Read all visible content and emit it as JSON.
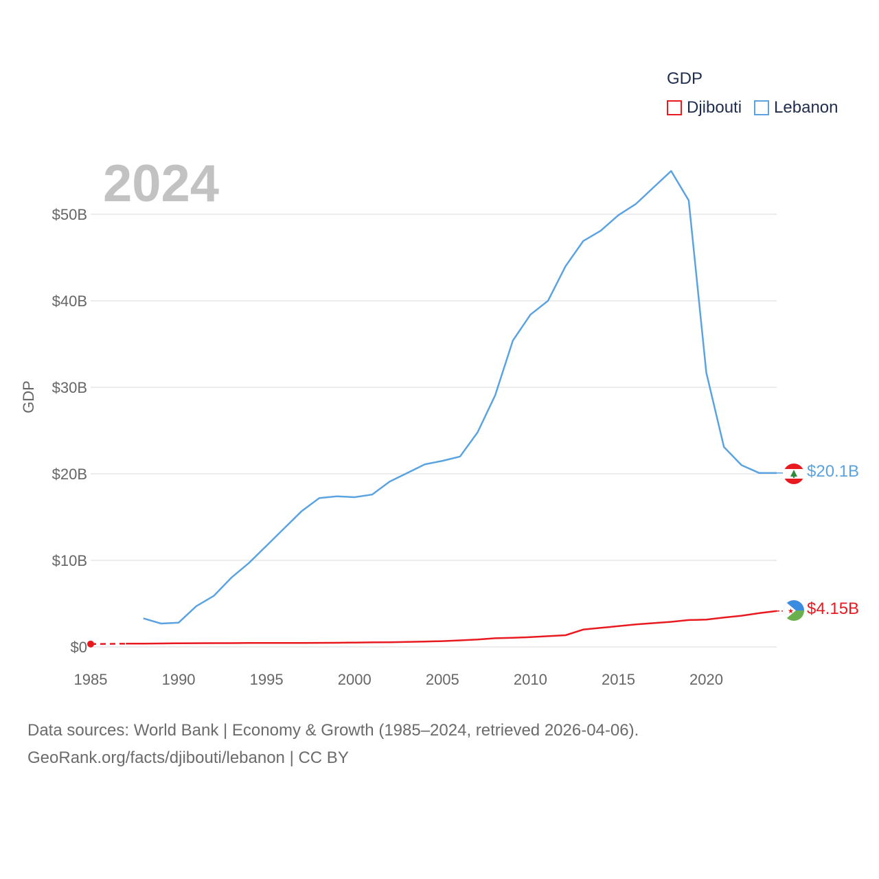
{
  "year_label": "2024",
  "legend": {
    "title": "GDP",
    "items": [
      {
        "name": "Djibouti",
        "color": "#e8191f"
      },
      {
        "name": "Lebanon",
        "color": "#5ba3e0"
      }
    ]
  },
  "footer": {
    "line1": "Data sources: World Bank | Economy & Growth (1985–2024, retrieved 2026-04-06).",
    "line2": "GeoRank.org/facts/djibouti/lebanon | CC BY"
  },
  "end_labels": {
    "lebanon": "$20.1B",
    "djibouti": "$4.15B"
  },
  "chart_data": {
    "type": "line",
    "title": "",
    "xlabel": "",
    "ylabel": "GDP",
    "xlim": [
      1985,
      2024
    ],
    "ylim": [
      0,
      55
    ],
    "x_ticks": [
      1985,
      1990,
      1995,
      2000,
      2005,
      2010,
      2015,
      2020
    ],
    "x_tick_labels": [
      "1985",
      "1990",
      "1995",
      "2000",
      "2005",
      "2010",
      "2015",
      "2020"
    ],
    "y_ticks": [
      0,
      10,
      20,
      30,
      40,
      50
    ],
    "y_tick_labels": [
      "$0",
      "$10B",
      "$20B",
      "$30B",
      "$40B",
      "$50B"
    ],
    "units": "billions USD",
    "series": [
      {
        "name": "Lebanon",
        "color": "#5ba3e0",
        "x": [
          1988,
          1989,
          1990,
          1991,
          1992,
          1993,
          1994,
          1995,
          1996,
          1997,
          1998,
          1999,
          2000,
          2001,
          2002,
          2003,
          2004,
          2005,
          2006,
          2007,
          2008,
          2009,
          2010,
          2011,
          2012,
          2013,
          2014,
          2015,
          2016,
          2017,
          2018,
          2019,
          2020,
          2021,
          2022,
          2023,
          2024
        ],
        "values": [
          3.3,
          2.7,
          2.8,
          4.7,
          5.9,
          8.0,
          9.7,
          11.7,
          13.7,
          15.7,
          17.2,
          17.4,
          17.3,
          17.6,
          19.1,
          20.1,
          21.1,
          21.5,
          22.0,
          24.8,
          29.1,
          35.4,
          38.4,
          40.0,
          44.0,
          46.9,
          48.1,
          49.9,
          51.2,
          53.1,
          55.0,
          51.6,
          31.7,
          23.1,
          21.0,
          20.1,
          20.1
        ],
        "last_value_label": "$20.1B"
      },
      {
        "name": "Djibouti",
        "color": "#e8191f",
        "x": [
          1985,
          1987,
          1988,
          1989,
          1990,
          1991,
          1992,
          1993,
          1994,
          1995,
          1996,
          1997,
          1998,
          1999,
          2000,
          2001,
          2002,
          2003,
          2004,
          2005,
          2006,
          2007,
          2008,
          2009,
          2010,
          2011,
          2012,
          2013,
          2014,
          2015,
          2016,
          2017,
          2018,
          2019,
          2020,
          2021,
          2022,
          2023,
          2024
        ],
        "values": [
          0.33,
          0.37,
          0.38,
          0.4,
          0.42,
          0.43,
          0.44,
          0.44,
          0.45,
          0.46,
          0.46,
          0.46,
          0.47,
          0.48,
          0.5,
          0.52,
          0.54,
          0.57,
          0.62,
          0.67,
          0.75,
          0.85,
          1.0,
          1.05,
          1.13,
          1.24,
          1.35,
          2.0,
          2.2,
          2.4,
          2.6,
          2.75,
          2.9,
          3.1,
          3.15,
          3.4,
          3.6,
          3.9,
          4.15
        ],
        "dashed_segment": [
          1985,
          1987
        ],
        "last_value_label": "$4.15B"
      }
    ]
  }
}
